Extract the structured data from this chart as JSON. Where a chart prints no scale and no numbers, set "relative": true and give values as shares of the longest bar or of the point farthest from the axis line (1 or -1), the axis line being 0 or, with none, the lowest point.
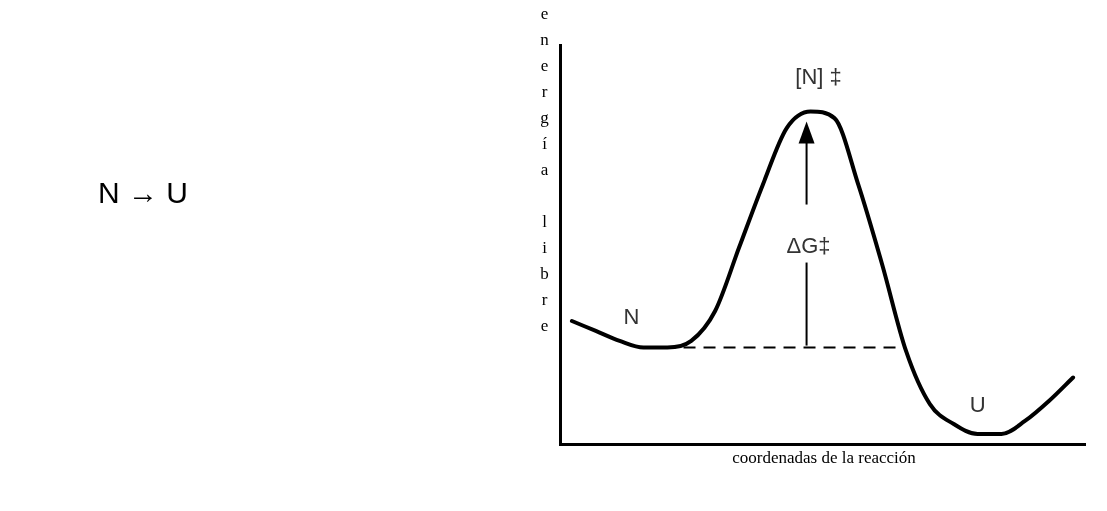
{
  "chart_data": {
    "type": "line",
    "relative": true,
    "xlabel": "coordenadas de la reacción",
    "ylabel": "energía libre",
    "categories": [
      null,
      null,
      null,
      null,
      null,
      null,
      null,
      null,
      null,
      null,
      null,
      null,
      null,
      null,
      null,
      null,
      null,
      null,
      null,
      null,
      null,
      null
    ],
    "series": [
      {
        "color": "#000000",
        "values": [
          0.37,
          0.34,
          0.31,
          0.29,
          0.29,
          0.31,
          0.4,
          0.59,
          0.78,
          0.95,
          1,
          0.98,
          0.78,
          0.54,
          0.28,
          0.12,
          0.06,
          0.03,
          0.03,
          0.07,
          0.13,
          0.2
        ]
      }
    ],
    "ref_lines": [
      {
        "axis": "y",
        "value": 0.29,
        "line_style": "dashed",
        "color": "#000000"
      }
    ],
    "annotations": [
      "N → U",
      "N",
      "[N] ‡",
      "ΔG‡",
      "U"
    ],
    "grid": false,
    "legend": false,
    "marker": "none",
    "line_style": "solid"
  }
}
